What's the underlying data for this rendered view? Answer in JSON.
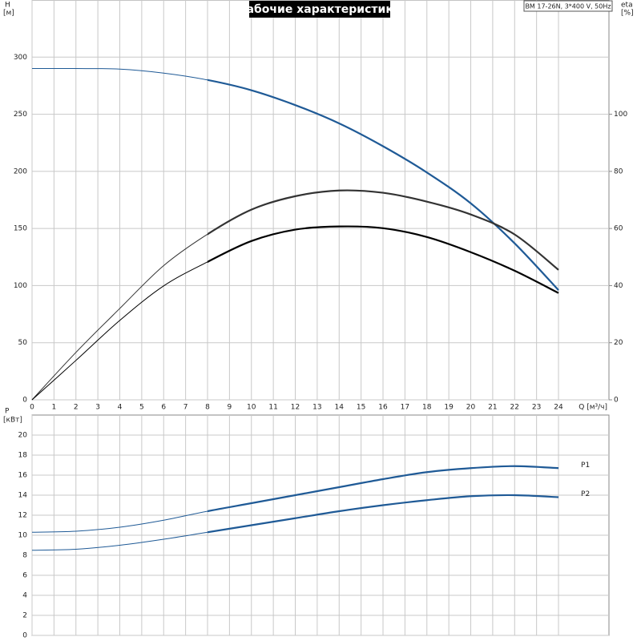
{
  "chart_data": [
    {
      "type": "line",
      "title": "Рабочие характеристики",
      "subtitle": "BM 17-26N, 3*400 V, 50Hz",
      "y_label": "H",
      "y_unit": "[м]",
      "y2_label": "eta",
      "y2_unit": "[%]",
      "x_label": "Q [м³/ч]",
      "x": [
        0,
        2,
        4,
        6,
        8,
        10,
        12,
        14,
        16,
        18,
        20,
        22,
        24
      ],
      "series": [
        {
          "color": "#1f5a96",
          "values": [
            290,
            290,
            289.5,
            286,
            280,
            271,
            258,
            242,
            222,
            199,
            172,
            137,
            96
          ]
        },
        {
          "color": "#333333",
          "axis": "y2",
          "values": [
            0,
            16.6,
            32,
            47,
            58,
            66.6,
            71.3,
            73.3,
            72.5,
            69.4,
            64.9,
            57.9,
            45.5
          ]
        },
        {
          "color": "#000000",
          "axis": "y2",
          "values": [
            0,
            13.8,
            27.8,
            39.9,
            48.3,
            55.6,
            59.6,
            60.7,
            60.1,
            57,
            51.7,
            45.2,
            37.4
          ]
        }
      ],
      "highlight_xlim": [
        8,
        24
      ],
      "xlim": [
        0,
        26.3
      ],
      "xticks": [
        0,
        1,
        2,
        3,
        4,
        5,
        6,
        7,
        8,
        9,
        10,
        11,
        12,
        13,
        14,
        15,
        16,
        17,
        18,
        19,
        20,
        21,
        22,
        23,
        24
      ],
      "ylim": [
        0,
        350
      ],
      "yticks": [
        0,
        50,
        100,
        150,
        200,
        250,
        300
      ],
      "y2lim": [
        0,
        140
      ],
      "y2ticks": [
        0,
        20,
        40,
        60,
        80,
        100
      ],
      "grid": true
    },
    {
      "type": "line",
      "y_label": "P",
      "y_unit": "[кВт]",
      "x": [
        0,
        2,
        4,
        6,
        8,
        10,
        12,
        14,
        16,
        18,
        20,
        22,
        24
      ],
      "series": [
        {
          "name": "P1",
          "color": "#1f5a96",
          "values": [
            10.3,
            10.4,
            10.8,
            11.5,
            12.4,
            13.2,
            14,
            14.8,
            15.6,
            16.3,
            16.7,
            16.9,
            16.7
          ]
        },
        {
          "name": "P2",
          "color": "#1f5a96",
          "values": [
            8.5,
            8.6,
            9.0,
            9.6,
            10.3,
            11,
            11.7,
            12.4,
            13.0,
            13.5,
            13.9,
            14.0,
            13.8
          ]
        }
      ],
      "highlight_xlim": [
        8,
        24
      ],
      "xlim": [
        0,
        26.3
      ],
      "xticks": [
        0,
        1,
        2,
        3,
        4,
        5,
        6,
        7,
        8,
        9,
        10,
        11,
        12,
        13,
        14,
        15,
        16,
        17,
        18,
        19,
        20,
        21,
        22,
        23,
        24
      ],
      "ylim": [
        0,
        22
      ],
      "yticks": [
        0,
        2,
        4,
        6,
        8,
        10,
        12,
        14,
        16,
        18,
        20
      ],
      "grid": true
    }
  ]
}
